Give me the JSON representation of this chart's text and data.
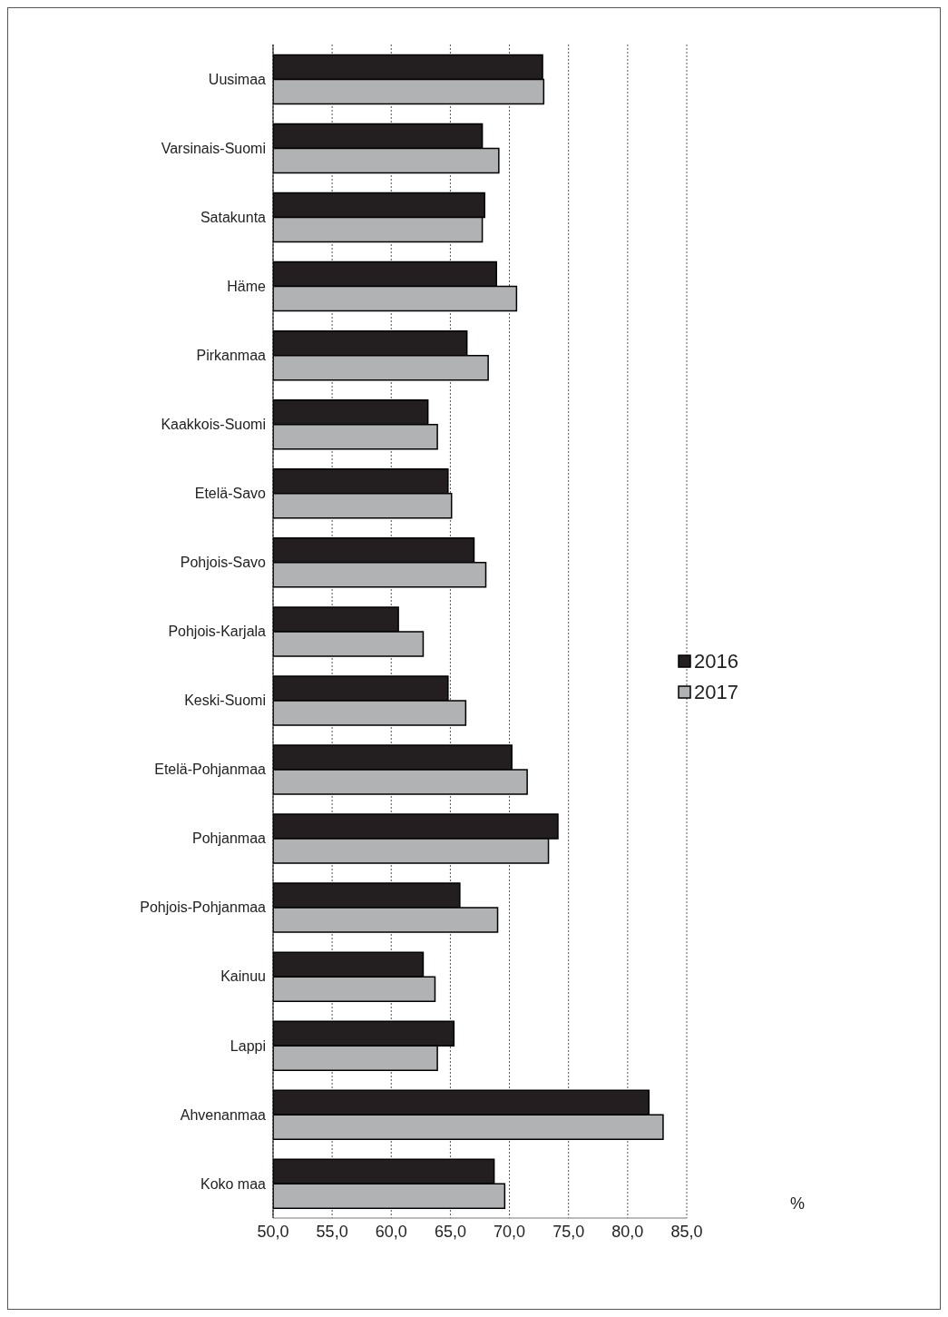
{
  "chart_data": {
    "type": "bar",
    "orientation": "horizontal",
    "categories": [
      "Uusimaa",
      "Varsinais-Suomi",
      "Satakunta",
      "Häme",
      "Pirkanmaa",
      "Kaakkois-Suomi",
      "Etelä-Savo",
      "Pohjois-Savo",
      "Pohjois-Karjala",
      "Keski-Suomi",
      "Etelä-Pohjanmaa",
      "Pohjanmaa",
      "Pohjois-Pohjanmaa",
      "Kainuu",
      "Lappi",
      "Ahvenanmaa",
      "Koko maa"
    ],
    "series": [
      {
        "name": "2016",
        "color": "#231f20",
        "values": [
          72.8,
          67.7,
          67.9,
          68.9,
          66.4,
          63.1,
          64.8,
          67.0,
          60.6,
          64.8,
          70.2,
          74.1,
          65.8,
          62.7,
          65.3,
          81.8,
          68.7
        ]
      },
      {
        "name": "2017",
        "color": "#b1b2b4",
        "values": [
          72.9,
          69.1,
          67.7,
          70.6,
          68.2,
          63.9,
          65.1,
          68.0,
          62.7,
          66.3,
          71.5,
          73.3,
          69.0,
          63.7,
          63.9,
          83.0,
          69.6
        ]
      }
    ],
    "xlim": [
      50,
      85
    ],
    "xticks": [
      {
        "value": 50,
        "label": "50,0"
      },
      {
        "value": 55,
        "label": "55,0"
      },
      {
        "value": 60,
        "label": "60,0"
      },
      {
        "value": 65,
        "label": "65,0"
      },
      {
        "value": 70,
        "label": "70,0"
      },
      {
        "value": 75,
        "label": "75,0"
      },
      {
        "value": 80,
        "label": "80,0"
      },
      {
        "value": 85,
        "label": "85,0"
      }
    ],
    "annotations": [
      "%"
    ],
    "grid": "x",
    "line_style": "dotted",
    "legend": "right"
  }
}
